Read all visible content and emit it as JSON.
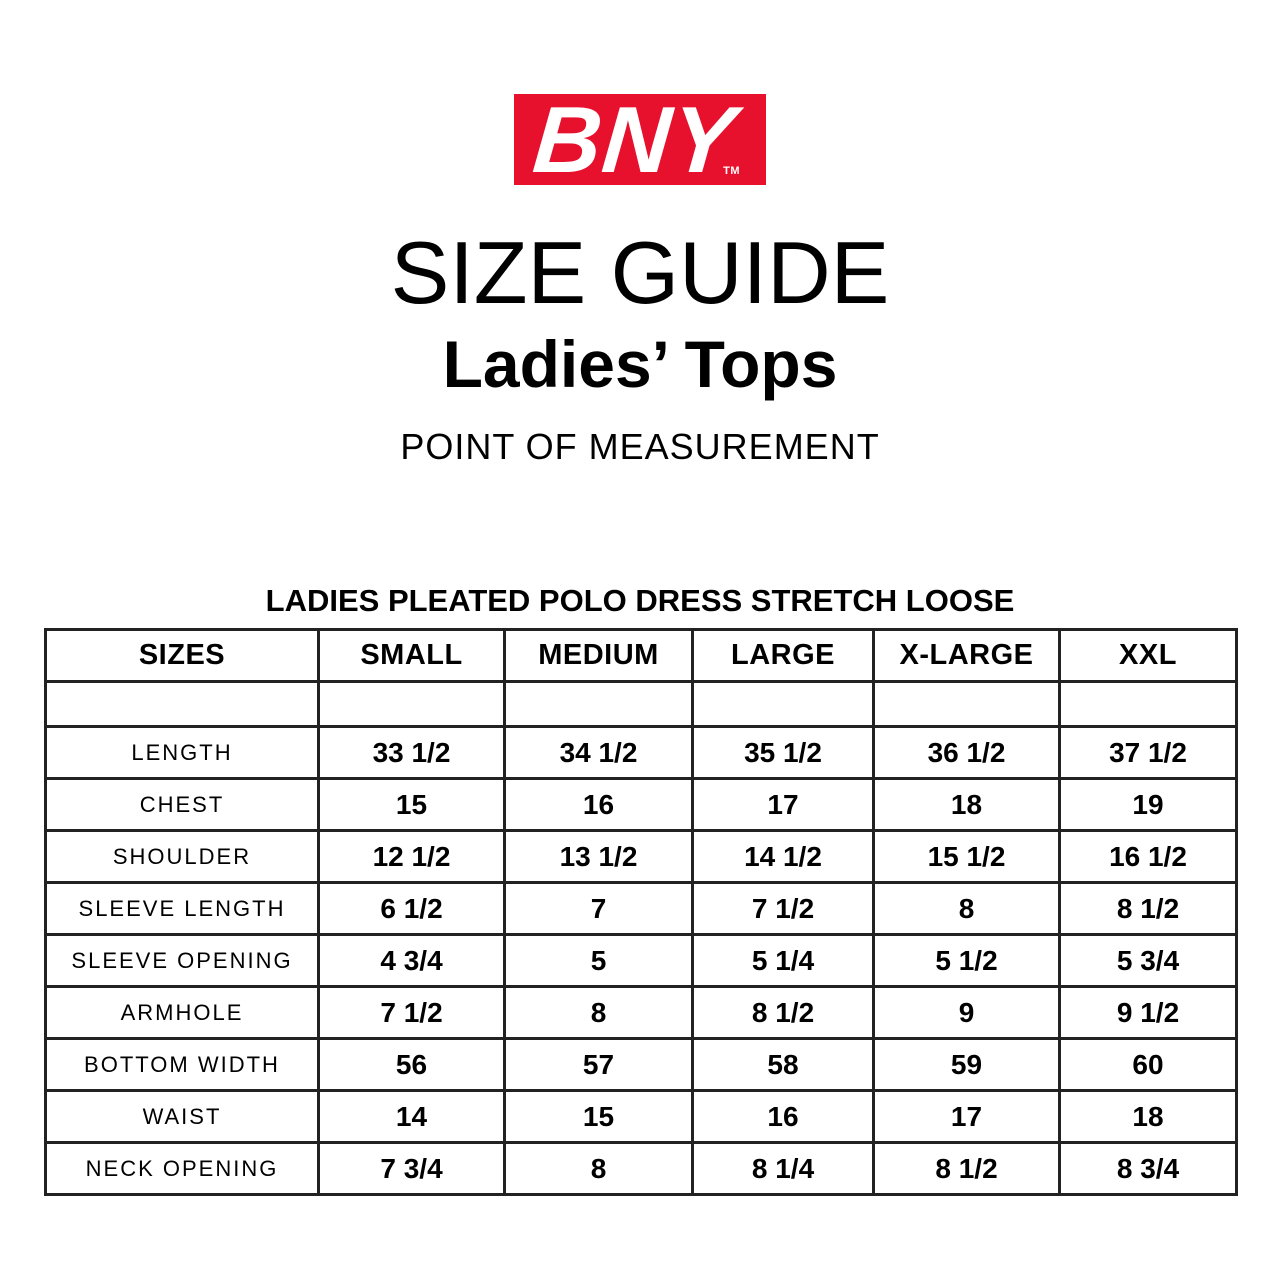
{
  "logo": {
    "text": "BNY",
    "trademark": "TM",
    "brand_color": "#e8112d",
    "text_color": "#ffffff"
  },
  "header": {
    "title": "SIZE GUIDE",
    "subtitle": "Ladies’ Tops",
    "measurement_label": "POINT OF MEASUREMENT"
  },
  "size_chart": {
    "product_title": "LADIES PLEATED POLO DRESS STRETCH LOOSE",
    "columns": [
      "SIZES",
      "SMALL",
      "MEDIUM",
      "LARGE",
      "X-LARGE",
      "XXL"
    ],
    "rows": [
      {
        "label": "LENGTH",
        "values": [
          "33 1/2",
          "34 1/2",
          "35 1/2",
          "36 1/2",
          "37 1/2"
        ]
      },
      {
        "label": "CHEST",
        "values": [
          "15",
          "16",
          "17",
          "18",
          "19"
        ]
      },
      {
        "label": "SHOULDER",
        "values": [
          "12 1/2",
          "13 1/2",
          "14 1/2",
          "15 1/2",
          "16 1/2"
        ]
      },
      {
        "label": "SLEEVE LENGTH",
        "values": [
          "6 1/2",
          "7",
          "7 1/2",
          "8",
          "8 1/2"
        ]
      },
      {
        "label": "SLEEVE OPENING",
        "values": [
          "4 3/4",
          "5",
          "5 1/4",
          "5 1/2",
          "5 3/4"
        ]
      },
      {
        "label": "ARMHOLE",
        "values": [
          "7 1/2",
          "8",
          "8 1/2",
          "9",
          "9 1/2"
        ]
      },
      {
        "label": "BOTTOM WIDTH",
        "values": [
          "56",
          "57",
          "58",
          "59",
          "60"
        ]
      },
      {
        "label": "WAIST",
        "values": [
          "14",
          "15",
          "16",
          "17",
          "18"
        ]
      },
      {
        "label": "NECK OPENING",
        "values": [
          "7 3/4",
          "8",
          "8 1/4",
          "8 1/2",
          "8 3/4"
        ]
      }
    ]
  }
}
